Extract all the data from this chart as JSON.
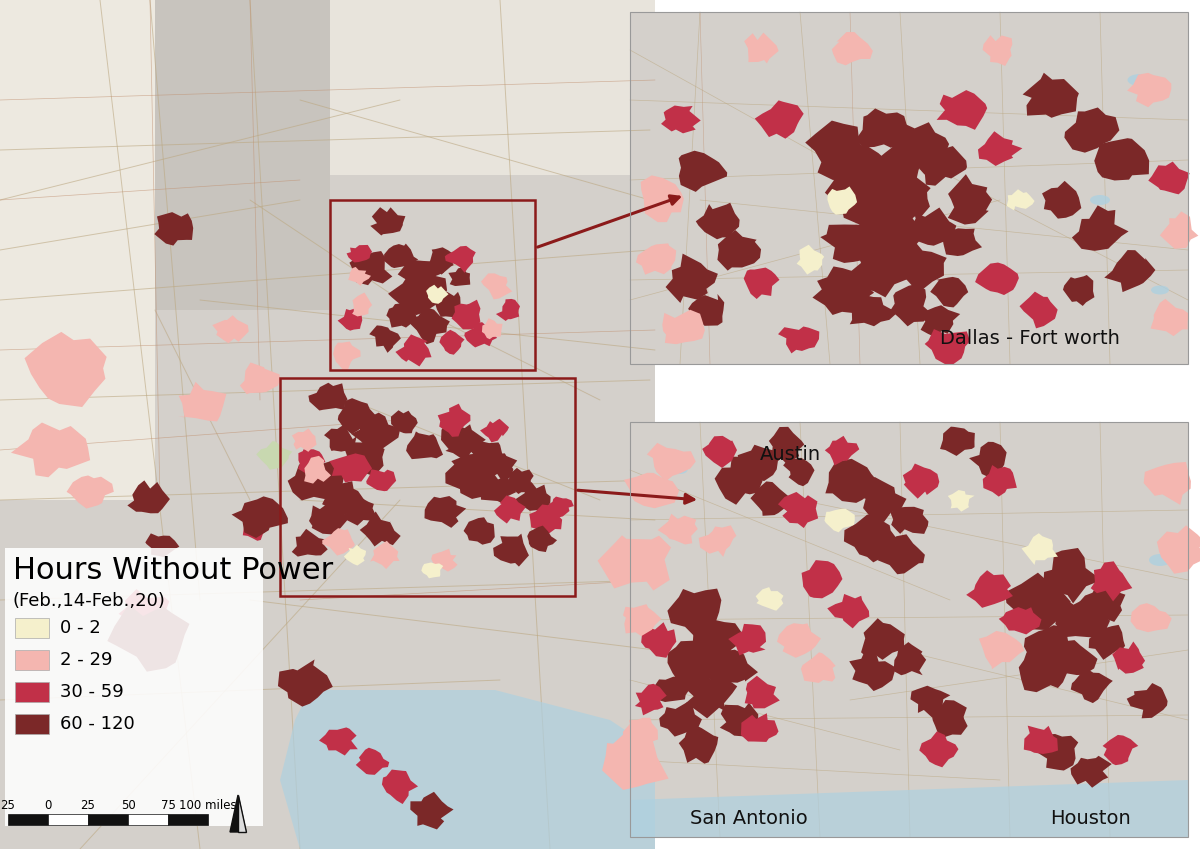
{
  "title": "Hours Without Power",
  "subtitle": "(Feb.,14-Feb.,20)",
  "legend_items": [
    {
      "label": "0 - 2",
      "color": "#f5f0cc"
    },
    {
      "label": "2 - 29",
      "color": "#f4b6b0"
    },
    {
      "label": "30 - 59",
      "color": "#c13048"
    },
    {
      "label": "60 - 120",
      "color": "#7b2828"
    }
  ],
  "scale_bar_labels": [
    "25",
    "0",
    "25",
    "50",
    "75",
    "100 miles"
  ],
  "map_bg_main": "#d4d0cb",
  "map_bg_light": "#e8e4dc",
  "map_bg_lighter": "#ede9e0",
  "map_bg_okla": "#dbd6cc",
  "inset_bg": "#d4d0cb",
  "white_bg": "#ffffff",
  "water_color": "#aed0e0",
  "road_color": "#c9a07a",
  "road_color2": "#d4b090",
  "box_color": "#8b1a1a",
  "arrow_color": "#8b1a1a",
  "dallas_label": "Dallas - Fort worth",
  "austin_label": "Austin",
  "sa_label": "San Antonio",
  "houston_label": "Houston",
  "title_fontsize": 22,
  "subtitle_fontsize": 13,
  "legend_fontsize": 13,
  "label_fontsize": 14,
  "c0": "#f5f0cc",
  "c1": "#f4b6b0",
  "c2": "#c13048",
  "c3": "#7b2828"
}
